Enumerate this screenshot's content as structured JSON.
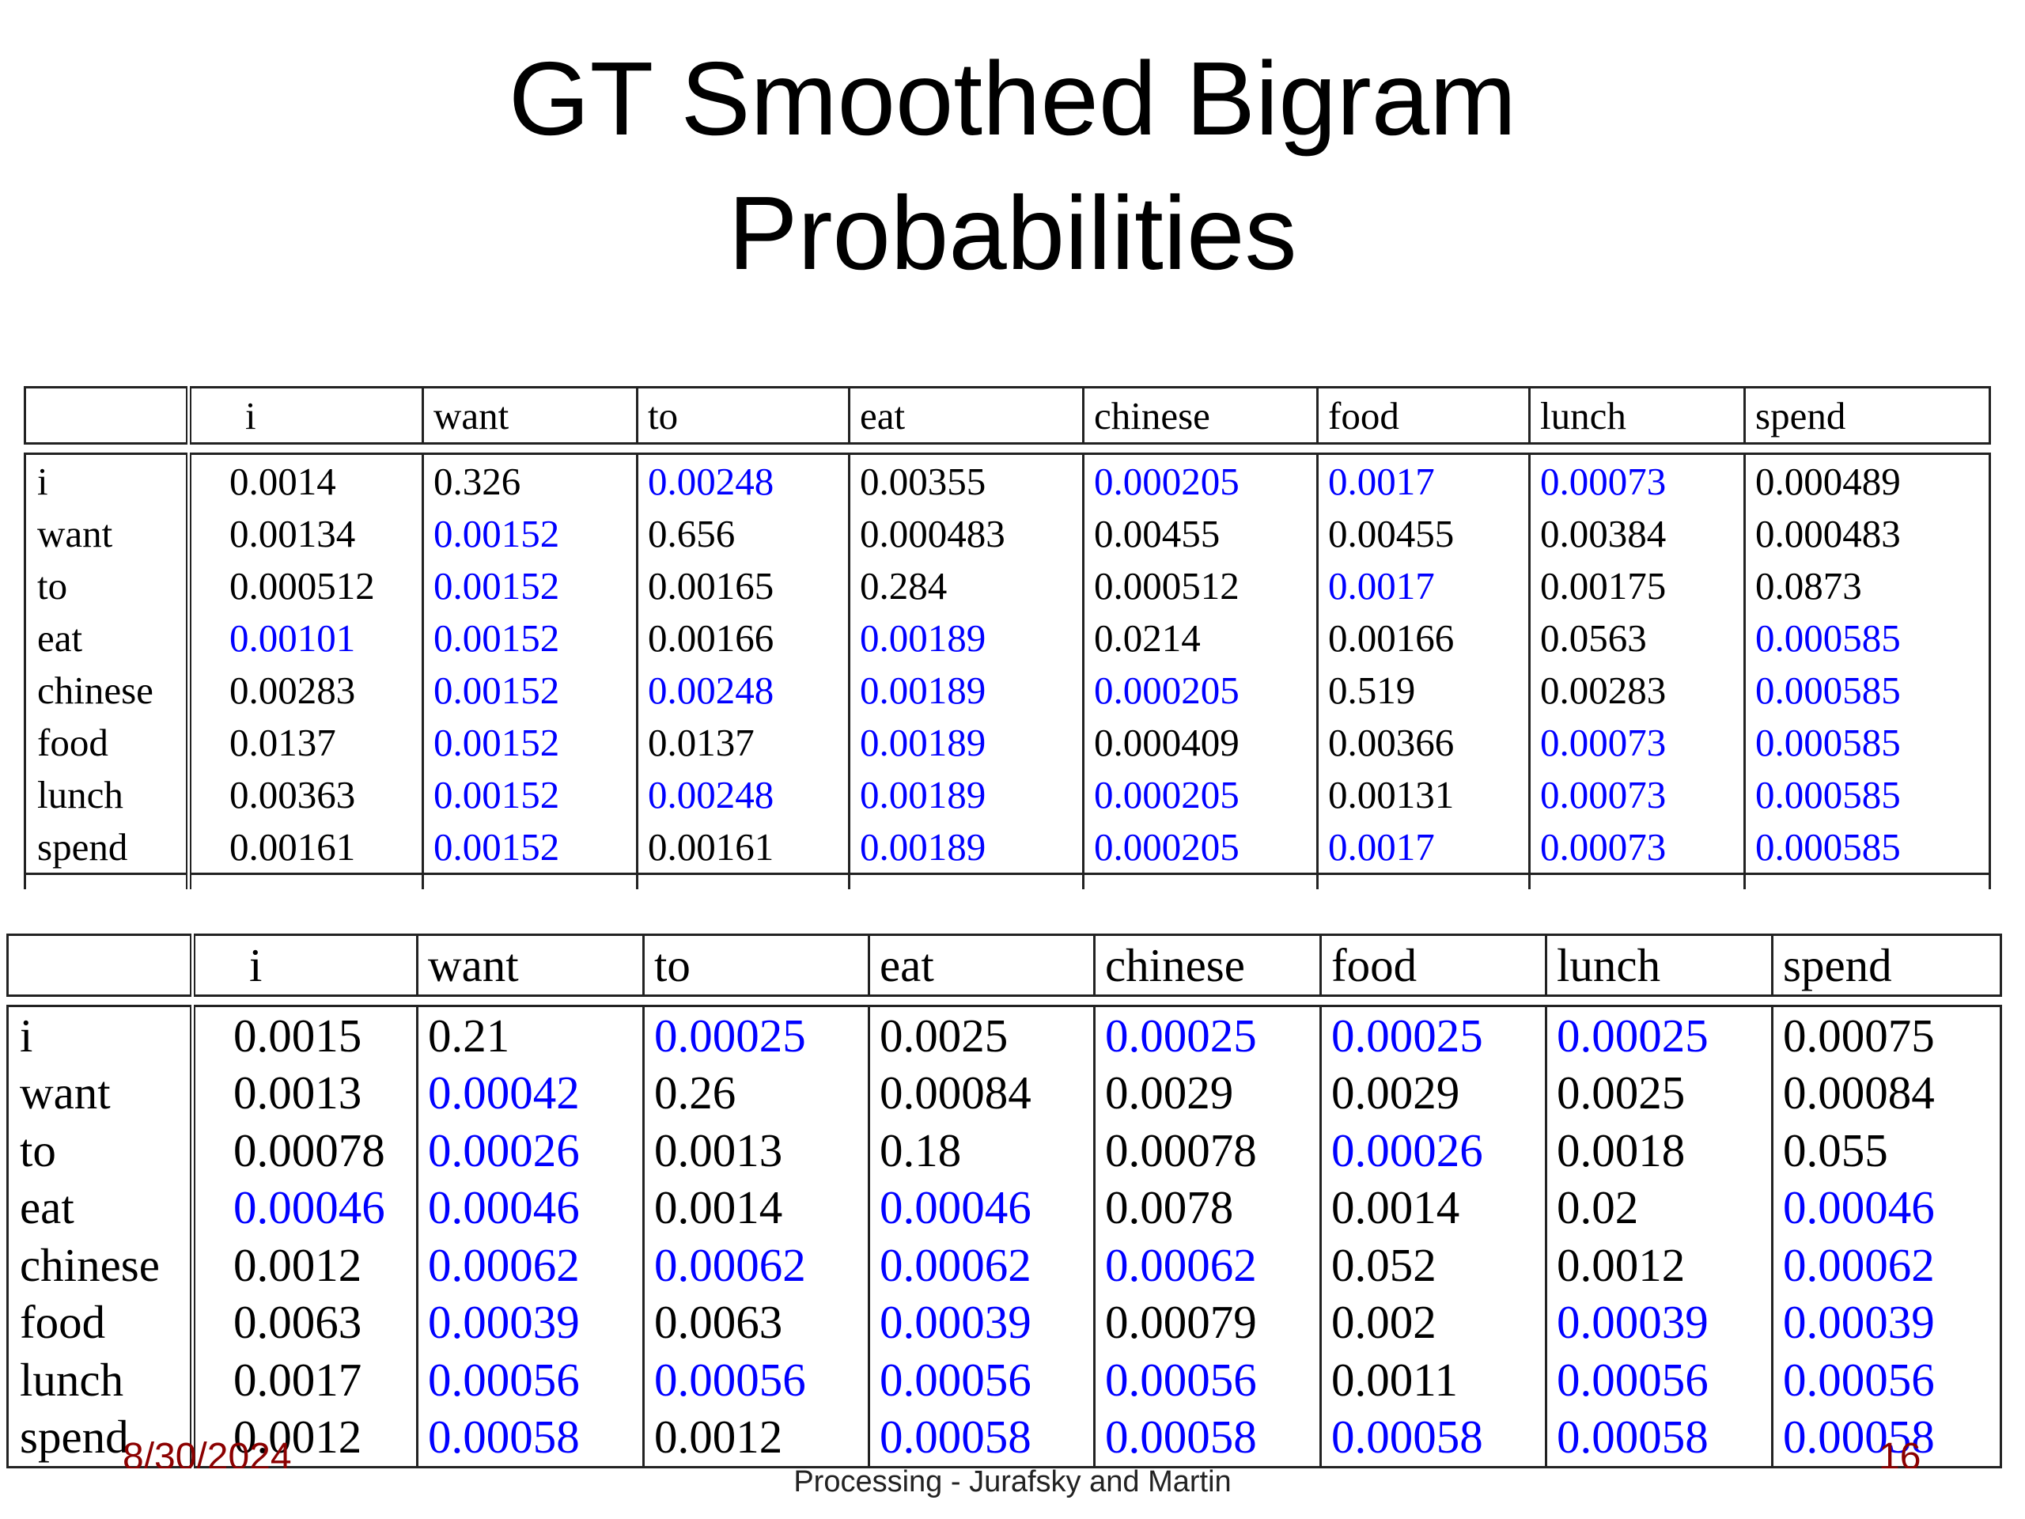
{
  "slide": {
    "title_line1": "GT Smoothed Bigram",
    "title_line2": "Probabilities"
  },
  "colors": {
    "unseen": "#0000ff",
    "seen": "#000000",
    "footer": "#8b0000"
  },
  "table_gt": {
    "columns": [
      "i",
      "want",
      "to",
      "eat",
      "chinese",
      "food",
      "lunch",
      "spend"
    ],
    "rows": [
      {
        "label": "i",
        "cells": [
          [
            "0.0014",
            "k"
          ],
          [
            "0.326",
            "k"
          ],
          [
            "0.00248",
            "b"
          ],
          [
            "0.00355",
            "k"
          ],
          [
            "0.000205",
            "b"
          ],
          [
            "0.0017",
            "b"
          ],
          [
            "0.00073",
            "b"
          ],
          [
            "0.000489",
            "k"
          ]
        ]
      },
      {
        "label": "want",
        "cells": [
          [
            "0.00134",
            "k"
          ],
          [
            "0.00152",
            "b"
          ],
          [
            "0.656",
            "k"
          ],
          [
            "0.000483",
            "k"
          ],
          [
            "0.00455",
            "k"
          ],
          [
            "0.00455",
            "k"
          ],
          [
            "0.00384",
            "k"
          ],
          [
            "0.000483",
            "k"
          ]
        ]
      },
      {
        "label": "to",
        "cells": [
          [
            "0.000512",
            "k"
          ],
          [
            "0.00152",
            "b"
          ],
          [
            "0.00165",
            "k"
          ],
          [
            "0.284",
            "k"
          ],
          [
            "0.000512",
            "k"
          ],
          [
            "0.0017",
            "b"
          ],
          [
            "0.00175",
            "k"
          ],
          [
            "0.0873",
            "k"
          ]
        ]
      },
      {
        "label": "eat",
        "cells": [
          [
            "0.00101",
            "b"
          ],
          [
            "0.00152",
            "b"
          ],
          [
            "0.00166",
            "k"
          ],
          [
            "0.00189",
            "b"
          ],
          [
            "0.0214",
            "k"
          ],
          [
            "0.00166",
            "k"
          ],
          [
            "0.0563",
            "k"
          ],
          [
            "0.000585",
            "b"
          ]
        ]
      },
      {
        "label": "chinese",
        "cells": [
          [
            "0.00283",
            "k"
          ],
          [
            "0.00152",
            "b"
          ],
          [
            "0.00248",
            "b"
          ],
          [
            "0.00189",
            "b"
          ],
          [
            "0.000205",
            "b"
          ],
          [
            "0.519",
            "k"
          ],
          [
            "0.00283",
            "k"
          ],
          [
            "0.000585",
            "b"
          ]
        ]
      },
      {
        "label": "food",
        "cells": [
          [
            "0.0137",
            "k"
          ],
          [
            "0.00152",
            "b"
          ],
          [
            "0.0137",
            "k"
          ],
          [
            "0.00189",
            "b"
          ],
          [
            "0.000409",
            "k"
          ],
          [
            "0.00366",
            "k"
          ],
          [
            "0.00073",
            "b"
          ],
          [
            "0.000585",
            "b"
          ]
        ]
      },
      {
        "label": "lunch",
        "cells": [
          [
            "0.00363",
            "k"
          ],
          [
            "0.00152",
            "b"
          ],
          [
            "0.00248",
            "b"
          ],
          [
            "0.00189",
            "b"
          ],
          [
            "0.000205",
            "b"
          ],
          [
            "0.00131",
            "k"
          ],
          [
            "0.00073",
            "b"
          ],
          [
            "0.000585",
            "b"
          ]
        ]
      },
      {
        "label": "spend",
        "cells": [
          [
            "0.00161",
            "k"
          ],
          [
            "0.00152",
            "b"
          ],
          [
            "0.00161",
            "k"
          ],
          [
            "0.00189",
            "b"
          ],
          [
            "0.000205",
            "b"
          ],
          [
            "0.0017",
            "b"
          ],
          [
            "0.00073",
            "b"
          ],
          [
            "0.000585",
            "b"
          ]
        ]
      }
    ]
  },
  "table_laplace": {
    "columns": [
      "i",
      "want",
      "to",
      "eat",
      "chinese",
      "food",
      "lunch",
      "spend"
    ],
    "rows": [
      {
        "label": "i",
        "cells": [
          [
            "0.0015",
            "k"
          ],
          [
            "0.21",
            "k"
          ],
          [
            "0.00025",
            "b"
          ],
          [
            "0.0025",
            "k"
          ],
          [
            "0.00025",
            "b"
          ],
          [
            "0.00025",
            "b"
          ],
          [
            "0.00025",
            "b"
          ],
          [
            "0.00075",
            "k"
          ]
        ]
      },
      {
        "label": "want",
        "cells": [
          [
            "0.0013",
            "k"
          ],
          [
            "0.00042",
            "b"
          ],
          [
            "0.26",
            "k"
          ],
          [
            "0.00084",
            "k"
          ],
          [
            "0.0029",
            "k"
          ],
          [
            "0.0029",
            "k"
          ],
          [
            "0.0025",
            "k"
          ],
          [
            "0.00084",
            "k"
          ]
        ]
      },
      {
        "label": "to",
        "cells": [
          [
            "0.00078",
            "k"
          ],
          [
            "0.00026",
            "b"
          ],
          [
            "0.0013",
            "k"
          ],
          [
            "0.18",
            "k"
          ],
          [
            "0.00078",
            "k"
          ],
          [
            "0.00026",
            "b"
          ],
          [
            "0.0018",
            "k"
          ],
          [
            "0.055",
            "k"
          ]
        ]
      },
      {
        "label": "eat",
        "cells": [
          [
            "0.00046",
            "b"
          ],
          [
            "0.00046",
            "b"
          ],
          [
            "0.0014",
            "k"
          ],
          [
            "0.00046",
            "b"
          ],
          [
            "0.0078",
            "k"
          ],
          [
            "0.0014",
            "k"
          ],
          [
            "0.02",
            "k"
          ],
          [
            "0.00046",
            "b"
          ]
        ]
      },
      {
        "label": "chinese",
        "cells": [
          [
            "0.0012",
            "k"
          ],
          [
            "0.00062",
            "b"
          ],
          [
            "0.00062",
            "b"
          ],
          [
            "0.00062",
            "b"
          ],
          [
            "0.00062",
            "b"
          ],
          [
            "0.052",
            "k"
          ],
          [
            "0.0012",
            "k"
          ],
          [
            "0.00062",
            "b"
          ]
        ]
      },
      {
        "label": "food",
        "cells": [
          [
            "0.0063",
            "k"
          ],
          [
            "0.00039",
            "b"
          ],
          [
            "0.0063",
            "k"
          ],
          [
            "0.00039",
            "b"
          ],
          [
            "0.00079",
            "k"
          ],
          [
            "0.002",
            "k"
          ],
          [
            "0.00039",
            "b"
          ],
          [
            "0.00039",
            "b"
          ]
        ]
      },
      {
        "label": "lunch",
        "cells": [
          [
            "0.0017",
            "k"
          ],
          [
            "0.00056",
            "b"
          ],
          [
            "0.00056",
            "b"
          ],
          [
            "0.00056",
            "b"
          ],
          [
            "0.00056",
            "b"
          ],
          [
            "0.0011",
            "k"
          ],
          [
            "0.00056",
            "b"
          ],
          [
            "0.00056",
            "b"
          ]
        ]
      },
      {
        "label": "spend",
        "cells": [
          [
            "0.0012",
            "k"
          ],
          [
            "0.00058",
            "b"
          ],
          [
            "0.0012",
            "k"
          ],
          [
            "0.00058",
            "b"
          ],
          [
            "0.00058",
            "b"
          ],
          [
            "0.00058",
            "b"
          ],
          [
            "0.00058",
            "b"
          ],
          [
            "0.00058",
            "b"
          ]
        ]
      }
    ]
  },
  "footer": {
    "date": "8/30/2024",
    "center": "Processing - Jurafsky and Martin",
    "page": "16"
  }
}
